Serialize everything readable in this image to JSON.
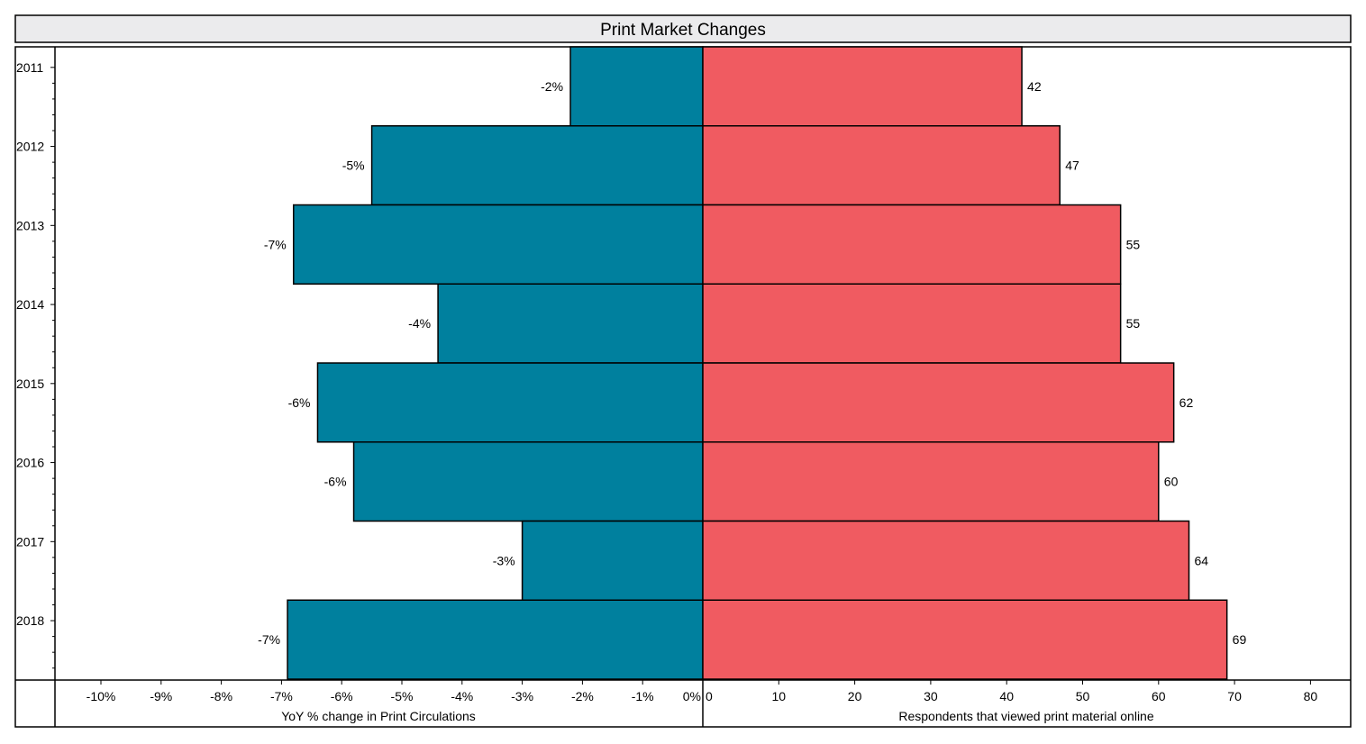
{
  "chart_data": {
    "type": "bar",
    "title": "Print Market Changes",
    "categories": [
      "2011",
      "2012",
      "2013",
      "2014",
      "2015",
      "2016",
      "2017",
      "2018"
    ],
    "series": [
      {
        "color": "#00809e",
        "values": [
          -2.2,
          -5.5,
          -6.8,
          -4.4,
          -6.4,
          -5.8,
          -3.0,
          -6.9
        ],
        "data_labels": [
          "-2%",
          "-5%",
          "-7%",
          "-4%",
          "-6%",
          "-6%",
          "-3%",
          "-7%"
        ],
        "axis": {
          "label": "YoY % change in Print Circulations",
          "range": [
            -11,
            0
          ],
          "ticks": [
            -10,
            -9,
            -8,
            -7,
            -6,
            -5,
            -4,
            -3,
            -2,
            -1,
            0
          ],
          "tick_labels": [
            "-10%",
            "-9%",
            "-8%",
            "-7%",
            "-6%",
            "-5%",
            "-4%",
            "-3%",
            "-2%",
            "-1%",
            "0%"
          ]
        }
      },
      {
        "color": "#f05b61",
        "values": [
          42,
          47,
          55,
          55,
          62,
          60,
          64,
          69
        ],
        "data_labels": [
          "42",
          "47",
          "55",
          "55",
          "62",
          "60",
          "64",
          "69"
        ],
        "axis": {
          "label": "Respondents that viewed print material online",
          "range": [
            0,
            85
          ],
          "ticks": [
            0,
            10,
            20,
            30,
            40,
            50,
            60,
            70,
            80
          ],
          "tick_labels": [
            "0",
            "10",
            "20",
            "30",
            "40",
            "50",
            "60",
            "70",
            "80"
          ]
        }
      }
    ],
    "grid": false,
    "orientation": "horizontal",
    "layout": "back-to-back (butterfly) bars"
  }
}
